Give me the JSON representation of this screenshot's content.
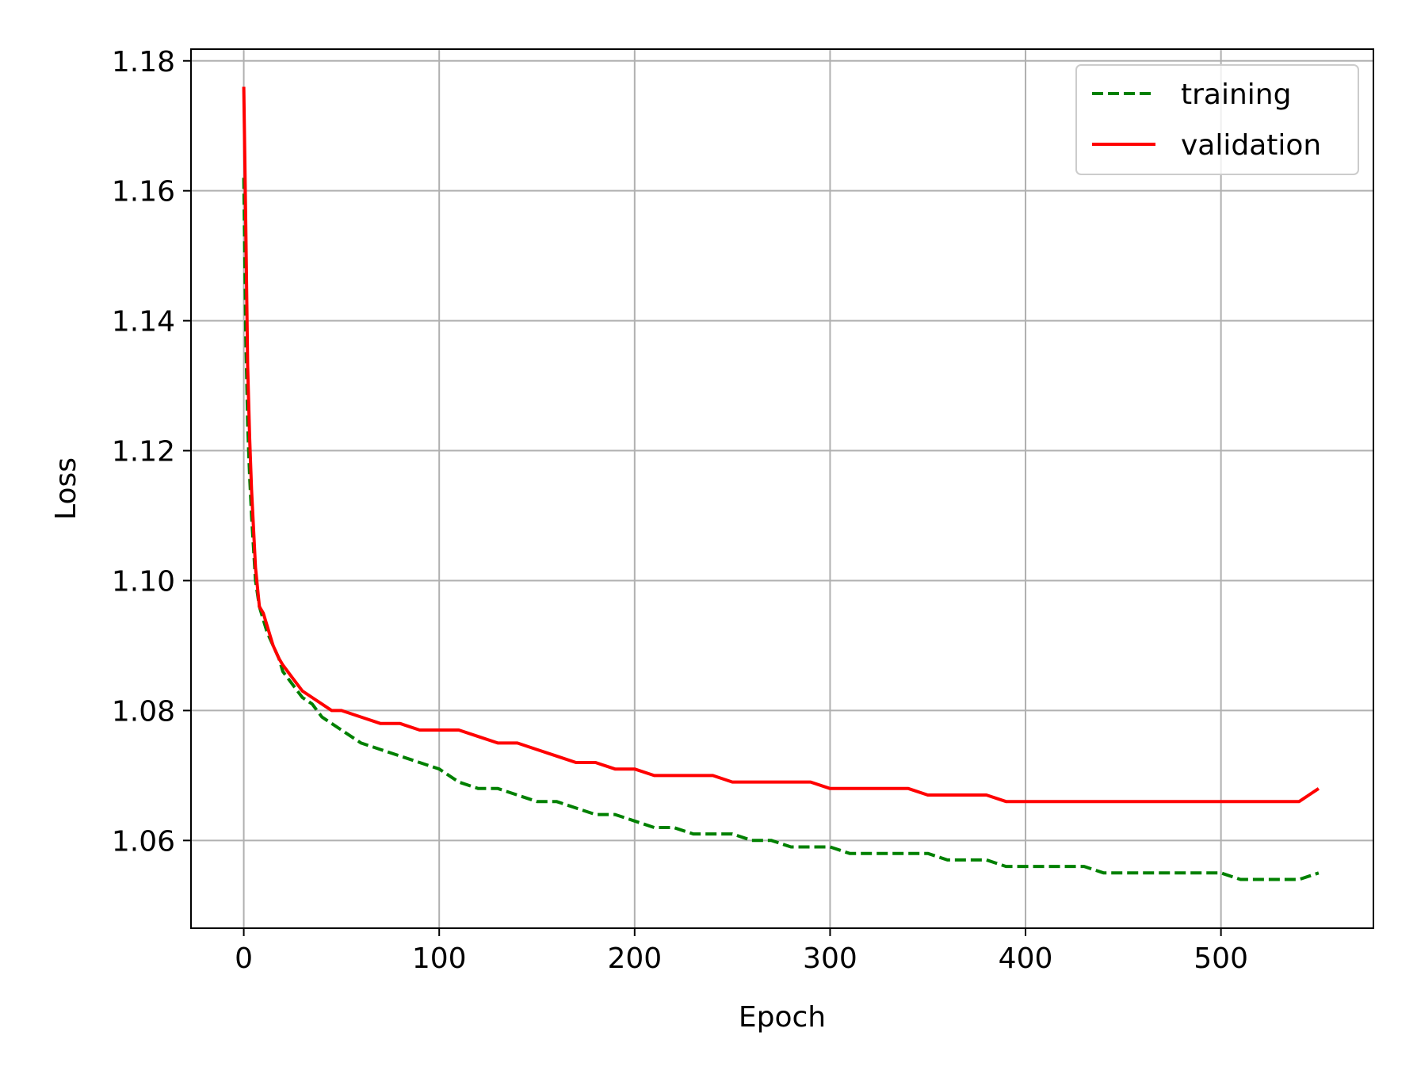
{
  "chart_data": {
    "type": "line",
    "title": "",
    "xlabel": "Epoch",
    "ylabel": "Loss",
    "xlim": [
      -27,
      578
    ],
    "ylim": [
      1.0465,
      1.1818
    ],
    "grid": true,
    "legend_position": "top-right",
    "x_ticks": [
      0,
      100,
      200,
      300,
      400,
      500
    ],
    "x_tick_labels": [
      "0",
      "100",
      "200",
      "300",
      "400",
      "500"
    ],
    "y_ticks": [
      1.06,
      1.08,
      1.1,
      1.12,
      1.14,
      1.16,
      1.18
    ],
    "y_tick_labels": [
      "1.06",
      "1.08",
      "1.10",
      "1.12",
      "1.14",
      "1.16",
      "1.18"
    ],
    "series": [
      {
        "name": "training",
        "color": "#008000",
        "line_style": "dashed",
        "x": [
          0,
          1,
          2,
          3,
          4,
          5,
          6,
          8,
          10,
          12,
          15,
          18,
          20,
          25,
          30,
          35,
          40,
          45,
          50,
          60,
          70,
          80,
          90,
          100,
          110,
          120,
          130,
          140,
          150,
          160,
          170,
          180,
          190,
          200,
          210,
          220,
          230,
          240,
          250,
          260,
          270,
          280,
          290,
          300,
          310,
          320,
          330,
          340,
          350,
          360,
          370,
          380,
          390,
          400,
          410,
          420,
          430,
          440,
          450,
          460,
          470,
          480,
          490,
          500,
          510,
          520,
          530,
          540,
          550
        ],
        "y": [
          1.162,
          1.138,
          1.124,
          1.116,
          1.11,
          1.105,
          1.1,
          1.096,
          1.094,
          1.092,
          1.09,
          1.088,
          1.086,
          1.084,
          1.082,
          1.081,
          1.079,
          1.078,
          1.077,
          1.075,
          1.074,
          1.073,
          1.072,
          1.071,
          1.069,
          1.068,
          1.068,
          1.067,
          1.066,
          1.066,
          1.065,
          1.064,
          1.064,
          1.063,
          1.062,
          1.062,
          1.061,
          1.061,
          1.061,
          1.06,
          1.06,
          1.059,
          1.059,
          1.059,
          1.058,
          1.058,
          1.058,
          1.058,
          1.058,
          1.057,
          1.057,
          1.057,
          1.056,
          1.056,
          1.056,
          1.056,
          1.056,
          1.055,
          1.055,
          1.055,
          1.055,
          1.055,
          1.055,
          1.055,
          1.054,
          1.054,
          1.054,
          1.054,
          1.055
        ]
      },
      {
        "name": "validation",
        "color": "#ff0000",
        "line_style": "solid",
        "x": [
          0,
          1,
          2,
          3,
          4,
          5,
          6,
          8,
          10,
          12,
          15,
          18,
          20,
          25,
          30,
          35,
          40,
          45,
          50,
          60,
          70,
          80,
          90,
          100,
          110,
          120,
          130,
          140,
          150,
          160,
          170,
          180,
          190,
          200,
          210,
          220,
          230,
          240,
          250,
          260,
          270,
          280,
          290,
          300,
          310,
          320,
          330,
          340,
          350,
          360,
          370,
          380,
          390,
          400,
          410,
          420,
          430,
          440,
          450,
          460,
          470,
          480,
          490,
          500,
          510,
          520,
          530,
          540,
          550
        ],
        "y": [
          1.176,
          1.155,
          1.133,
          1.122,
          1.114,
          1.108,
          1.102,
          1.096,
          1.095,
          1.093,
          1.09,
          1.088,
          1.087,
          1.085,
          1.083,
          1.082,
          1.081,
          1.08,
          1.08,
          1.079,
          1.078,
          1.078,
          1.077,
          1.077,
          1.077,
          1.076,
          1.075,
          1.075,
          1.074,
          1.073,
          1.072,
          1.072,
          1.071,
          1.071,
          1.07,
          1.07,
          1.07,
          1.07,
          1.069,
          1.069,
          1.069,
          1.069,
          1.069,
          1.068,
          1.068,
          1.068,
          1.068,
          1.068,
          1.067,
          1.067,
          1.067,
          1.067,
          1.066,
          1.066,
          1.066,
          1.066,
          1.066,
          1.066,
          1.066,
          1.066,
          1.066,
          1.066,
          1.066,
          1.066,
          1.066,
          1.066,
          1.066,
          1.066,
          1.068
        ]
      }
    ]
  }
}
